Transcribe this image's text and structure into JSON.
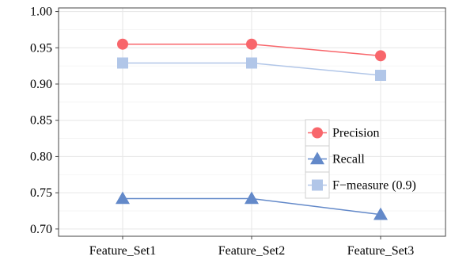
{
  "chart_data": {
    "type": "line",
    "categories": [
      "Feature_Set1",
      "Feature_Set2",
      "Feature_Set3"
    ],
    "ylim": [
      0.69,
      1.005
    ],
    "yticks": [
      "0.70",
      "0.75",
      "0.80",
      "0.85",
      "0.90",
      "0.95",
      "1.00"
    ],
    "grid": true,
    "legend_position": "right",
    "series": [
      {
        "name": "Precision",
        "marker": "circle",
        "color": "#F8666B",
        "values": [
          0.955,
          0.955,
          0.939
        ]
      },
      {
        "name": "Recall",
        "marker": "triangle",
        "color": "#6389C9",
        "values": [
          0.742,
          0.742,
          0.72
        ]
      },
      {
        "name": "F−measure (0.9)",
        "marker": "square",
        "color": "#B1C6E8",
        "values": [
          0.929,
          0.929,
          0.912
        ]
      }
    ]
  }
}
